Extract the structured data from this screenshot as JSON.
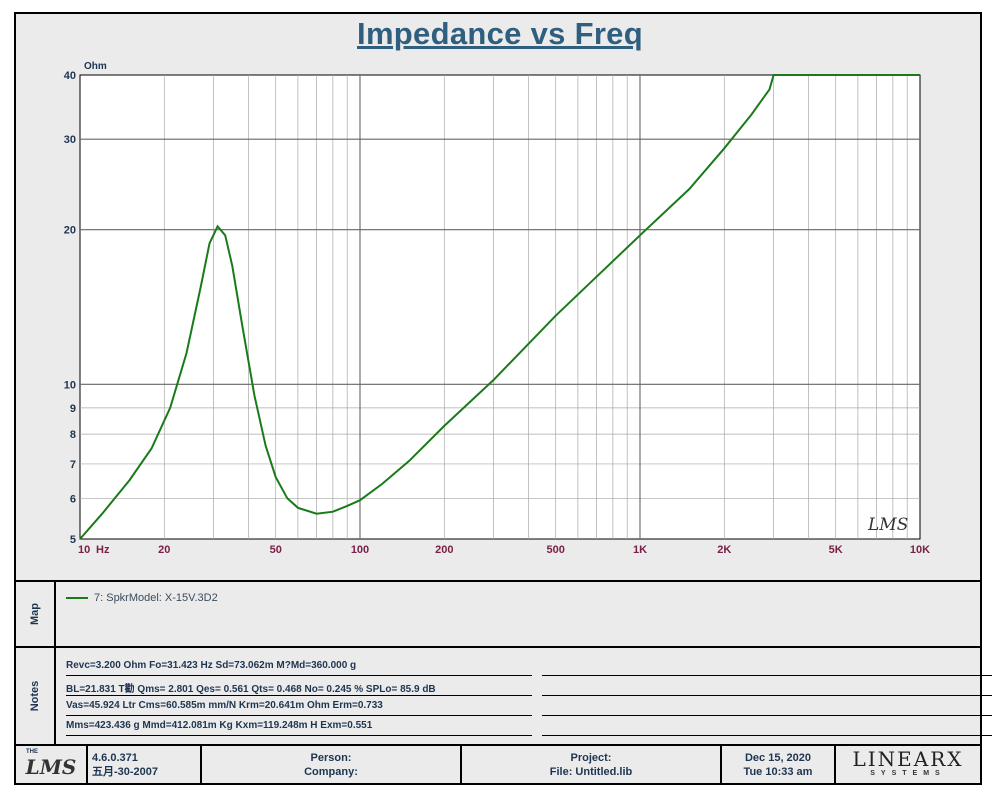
{
  "chart_data": {
    "type": "line",
    "title": "Impedance vs Freq",
    "ylabel": "Ohm",
    "xlabel": "Hz",
    "x_scale": "log",
    "y_scale": "log",
    "xlim": [
      10,
      10000
    ],
    "ylim": [
      5,
      40
    ],
    "x_ticks": [
      {
        "v": 10,
        "label": "10"
      },
      {
        "v": 20,
        "label": "20"
      },
      {
        "v": 50,
        "label": "50"
      },
      {
        "v": 100,
        "label": "100"
      },
      {
        "v": 200,
        "label": "200"
      },
      {
        "v": 500,
        "label": "500"
      },
      {
        "v": 1000,
        "label": "1K"
      },
      {
        "v": 2000,
        "label": "2K"
      },
      {
        "v": 5000,
        "label": "5K"
      },
      {
        "v": 10000,
        "label": "10K"
      }
    ],
    "y_ticks": [
      {
        "v": 5,
        "label": "5"
      },
      {
        "v": 6,
        "label": "6"
      },
      {
        "v": 7,
        "label": "7"
      },
      {
        "v": 8,
        "label": "8"
      },
      {
        "v": 9,
        "label": "9"
      },
      {
        "v": 10,
        "label": "10"
      },
      {
        "v": 20,
        "label": "20"
      },
      {
        "v": 30,
        "label": "30"
      },
      {
        "v": 40,
        "label": "40"
      }
    ],
    "grid": true,
    "series": [
      {
        "name": "7: SpkrModel: X-15V.3D2",
        "color": "#1a7a1a",
        "x": [
          10,
          12,
          15,
          18,
          21,
          24,
          27,
          29,
          31,
          33,
          35,
          38,
          42,
          46,
          50,
          55,
          60,
          70,
          80,
          90,
          100,
          120,
          150,
          200,
          300,
          500,
          700,
          1000,
          1500,
          2000,
          2500,
          2900,
          3000,
          5000,
          10000
        ],
        "y": [
          5.0,
          5.6,
          6.5,
          7.5,
          9.0,
          11.5,
          15.5,
          18.8,
          20.3,
          19.5,
          17.0,
          13.0,
          9.5,
          7.6,
          6.6,
          6.0,
          5.75,
          5.6,
          5.65,
          5.8,
          5.95,
          6.4,
          7.1,
          8.3,
          10.2,
          13.6,
          16.2,
          19.5,
          24.0,
          28.8,
          33.5,
          37.5,
          40.0,
          40.0,
          40.0
        ]
      }
    ]
  },
  "map": {
    "side_label": "Map",
    "legend_label": "7: SpkrModel: X-15V.3D2"
  },
  "notes": {
    "side_label": "Notes",
    "lines": [
      "Revc=3.200 Ohm  Fo=31.423 Hz  Sd=73.062m M?Md=360.000 g",
      "BL=21.831 T勸  Qms= 2.801  Qes= 0.561  Qts= 0.468  No= 0.245 %  SPLo= 85.9 dB",
      "Vas=45.924 Ltr  Cms=60.585m mm/N  Krm=20.641m Ohm  Erm=0.733",
      "Mms=423.436 g  Mmd=412.081m Kg  Kxm=119.248m H  Exm=0.551"
    ]
  },
  "footer": {
    "logo_left": "LMS",
    "logo_prefix": "THE",
    "version": "4.6.0.371",
    "version_date": "五月-30-2007",
    "person_label": "Person:",
    "company_label": "Company:",
    "project_label": "Project:",
    "file_label": "File: Untitled.lib",
    "date": "Dec 15, 2020",
    "time": "Tue 10:33 am",
    "brand_name": "LINEARX",
    "brand_sub": "SYSTEMS"
  },
  "watermark": "LMS"
}
